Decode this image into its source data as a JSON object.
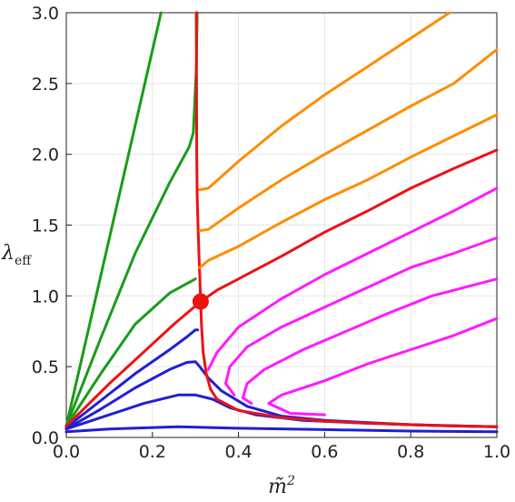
{
  "chart_data": {
    "type": "line",
    "xlabel": "m̃",
    "xlabel_sup": "2",
    "ylabel": "λ",
    "ylabel_sub": "eff",
    "xlim": [
      0,
      1
    ],
    "ylim": [
      0,
      3
    ],
    "xticks": [
      "0.0",
      "0.2",
      "0.4",
      "0.6",
      "0.8",
      "1.0"
    ],
    "yticks": [
      "0.0",
      "0.5",
      "1.0",
      "1.5",
      "2.0",
      "2.5",
      "3.0"
    ],
    "grid": true,
    "colors": {
      "green": "#1a9c1a",
      "blue": "#1f1fd6",
      "red": "#ee1111",
      "orange": "#ff8c00",
      "magenta": "#ff1aff"
    },
    "series": [
      {
        "color": "green",
        "points": [
          [
            0.0,
            0.08
          ],
          [
            0.22,
            3.0
          ]
        ]
      },
      {
        "color": "green",
        "points": [
          [
            0.0,
            0.08
          ],
          [
            0.08,
            0.7
          ],
          [
            0.16,
            1.3
          ],
          [
            0.24,
            1.8
          ],
          [
            0.285,
            2.05
          ],
          [
            0.295,
            2.15
          ],
          [
            0.302,
            2.6
          ],
          [
            0.304,
            3.0
          ]
        ]
      },
      {
        "color": "green",
        "points": [
          [
            0.0,
            0.08
          ],
          [
            0.08,
            0.45
          ],
          [
            0.16,
            0.8
          ],
          [
            0.24,
            1.02
          ],
          [
            0.3,
            1.12
          ]
        ]
      },
      {
        "color": "blue",
        "points": [
          [
            0.0,
            0.04
          ],
          [
            0.1,
            0.06
          ],
          [
            0.26,
            0.075
          ],
          [
            0.4,
            0.065
          ],
          [
            0.6,
            0.055
          ],
          [
            0.8,
            0.045
          ],
          [
            1.0,
            0.04
          ]
        ]
      },
      {
        "color": "blue",
        "points": [
          [
            0.0,
            0.06
          ],
          [
            0.08,
            0.14
          ],
          [
            0.18,
            0.24
          ],
          [
            0.26,
            0.3
          ],
          [
            0.3,
            0.3
          ],
          [
            0.34,
            0.27
          ],
          [
            0.38,
            0.21
          ],
          [
            0.44,
            0.16
          ],
          [
            0.55,
            0.12
          ],
          [
            0.7,
            0.1
          ],
          [
            0.85,
            0.085
          ],
          [
            1.0,
            0.075
          ]
        ]
      },
      {
        "color": "blue",
        "points": [
          [
            0.0,
            0.06
          ],
          [
            0.08,
            0.2
          ],
          [
            0.16,
            0.35
          ],
          [
            0.24,
            0.48
          ],
          [
            0.28,
            0.53
          ],
          [
            0.3,
            0.535
          ],
          [
            0.31,
            0.5
          ],
          [
            0.33,
            0.42
          ],
          [
            0.36,
            0.33
          ],
          [
            0.42,
            0.22
          ],
          [
            0.5,
            0.15
          ],
          [
            0.6,
            0.12
          ],
          [
            0.8,
            0.09
          ],
          [
            1.0,
            0.075
          ]
        ]
      },
      {
        "color": "blue",
        "points": [
          [
            0.0,
            0.07
          ],
          [
            0.08,
            0.26
          ],
          [
            0.16,
            0.45
          ],
          [
            0.24,
            0.62
          ],
          [
            0.28,
            0.71
          ],
          [
            0.3,
            0.76
          ],
          [
            0.305,
            0.76
          ]
        ]
      },
      {
        "color": "red",
        "points": [
          [
            0.302,
            3.0
          ],
          [
            0.303,
            2.0
          ],
          [
            0.304,
            1.7
          ],
          [
            0.306,
            1.5
          ],
          [
            0.308,
            1.3
          ],
          [
            0.31,
            1.15
          ],
          [
            0.312,
            0.96
          ],
          [
            0.314,
            0.8
          ],
          [
            0.318,
            0.6
          ],
          [
            0.325,
            0.45
          ],
          [
            0.335,
            0.34
          ],
          [
            0.35,
            0.27
          ],
          [
            0.4,
            0.19
          ],
          [
            0.5,
            0.14
          ],
          [
            0.6,
            0.115
          ],
          [
            0.7,
            0.1
          ],
          [
            0.8,
            0.09
          ],
          [
            0.9,
            0.08
          ],
          [
            1.0,
            0.075
          ]
        ]
      },
      {
        "color": "red",
        "points": [
          [
            0.0,
            0.08
          ],
          [
            0.05,
            0.23
          ],
          [
            0.1,
            0.38
          ],
          [
            0.15,
            0.52
          ],
          [
            0.2,
            0.66
          ],
          [
            0.25,
            0.8
          ],
          [
            0.312,
            0.96
          ],
          [
            0.35,
            1.04
          ],
          [
            0.4,
            1.12
          ],
          [
            0.5,
            1.28
          ],
          [
            0.6,
            1.45
          ],
          [
            0.7,
            1.6
          ],
          [
            0.8,
            1.76
          ],
          [
            0.9,
            1.9
          ],
          [
            1.0,
            2.03
          ]
        ]
      },
      {
        "color": "orange",
        "points": [
          [
            0.31,
            1.2
          ],
          [
            0.33,
            1.25
          ],
          [
            0.4,
            1.35
          ],
          [
            0.5,
            1.52
          ],
          [
            0.6,
            1.68
          ],
          [
            0.7,
            1.82
          ],
          [
            0.8,
            1.98
          ],
          [
            0.9,
            2.13
          ],
          [
            1.0,
            2.28
          ]
        ]
      },
      {
        "color": "orange",
        "points": [
          [
            0.31,
            1.46
          ],
          [
            0.33,
            1.47
          ],
          [
            0.4,
            1.62
          ],
          [
            0.5,
            1.82
          ],
          [
            0.6,
            2.0
          ],
          [
            0.7,
            2.17
          ],
          [
            0.8,
            2.34
          ],
          [
            0.9,
            2.5
          ],
          [
            1.0,
            2.74
          ]
        ]
      },
      {
        "color": "orange",
        "points": [
          [
            0.31,
            1.75
          ],
          [
            0.33,
            1.76
          ],
          [
            0.4,
            1.95
          ],
          [
            0.5,
            2.2
          ],
          [
            0.6,
            2.42
          ],
          [
            0.7,
            2.62
          ],
          [
            0.8,
            2.82
          ],
          [
            0.89,
            3.0
          ]
        ]
      },
      {
        "color": "magenta",
        "points": [
          [
            0.33,
            0.48
          ],
          [
            0.35,
            0.6
          ],
          [
            0.4,
            0.78
          ],
          [
            0.5,
            0.98
          ],
          [
            0.6,
            1.15
          ],
          [
            0.7,
            1.3
          ],
          [
            0.8,
            1.45
          ],
          [
            0.9,
            1.6
          ],
          [
            1.0,
            1.76
          ]
        ]
      },
      {
        "color": "magenta",
        "points": [
          [
            0.39,
            0.3
          ],
          [
            0.37,
            0.38
          ],
          [
            0.38,
            0.5
          ],
          [
            0.42,
            0.64
          ],
          [
            0.5,
            0.78
          ],
          [
            0.6,
            0.92
          ],
          [
            0.7,
            1.06
          ],
          [
            0.8,
            1.2
          ],
          [
            0.9,
            1.3
          ],
          [
            1.0,
            1.41
          ]
        ]
      },
      {
        "color": "magenta",
        "points": [
          [
            0.43,
            0.24
          ],
          [
            0.41,
            0.28
          ],
          [
            0.42,
            0.38
          ],
          [
            0.46,
            0.48
          ],
          [
            0.55,
            0.62
          ],
          [
            0.65,
            0.75
          ],
          [
            0.75,
            0.88
          ],
          [
            0.85,
            1.0
          ],
          [
            1.0,
            1.12
          ]
        ]
      },
      {
        "color": "magenta",
        "points": [
          [
            0.6,
            0.16
          ],
          [
            0.52,
            0.17
          ],
          [
            0.47,
            0.24
          ],
          [
            0.5,
            0.3
          ],
          [
            0.6,
            0.4
          ],
          [
            0.7,
            0.52
          ],
          [
            0.8,
            0.62
          ],
          [
            0.9,
            0.72
          ],
          [
            1.0,
            0.84
          ]
        ]
      }
    ],
    "marker": {
      "x": 0.312,
      "y": 0.96,
      "color": "red"
    }
  }
}
